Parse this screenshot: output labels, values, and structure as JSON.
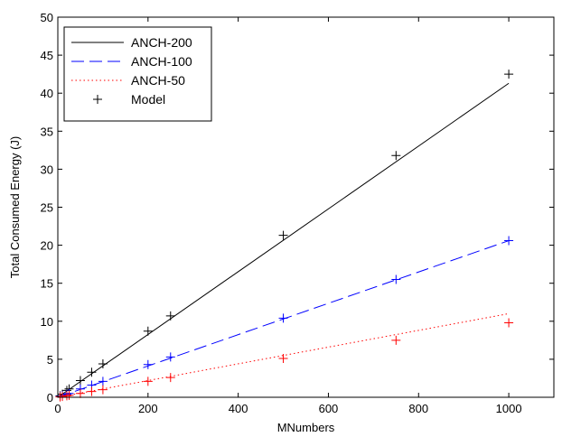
{
  "chart_data": {
    "type": "line",
    "title": "",
    "xlabel": "MNumbers",
    "ylabel": "Total Consumed Energy (J)",
    "xlim": [
      0,
      1100
    ],
    "ylim": [
      0,
      50
    ],
    "xticks": [
      0,
      200,
      400,
      600,
      800,
      1000
    ],
    "yticks": [
      0,
      5,
      10,
      15,
      20,
      25,
      30,
      35,
      40,
      45,
      50
    ],
    "grid": false,
    "legend_position": "top-left",
    "series": [
      {
        "name": "ANCH-200",
        "kind": "line",
        "style": "solid",
        "color": "#000000",
        "x": [
          0,
          1000
        ],
        "y": [
          0,
          41.3
        ]
      },
      {
        "name": "ANCH-100",
        "kind": "line",
        "style": "dashed",
        "color": "#0000ff",
        "x": [
          0,
          1000
        ],
        "y": [
          0,
          20.6
        ]
      },
      {
        "name": "ANCH-50",
        "kind": "line",
        "style": "dotted",
        "color": "#ff0000",
        "x": [
          0,
          1000
        ],
        "y": [
          0,
          11.0
        ]
      },
      {
        "name": "Model",
        "kind": "marker",
        "marker": "+",
        "color": "#000000",
        "x": [
          5,
          10,
          20,
          25,
          50,
          75,
          100,
          200,
          250,
          500,
          750,
          1000
        ],
        "y": [
          0.2,
          0.4,
          0.9,
          1.1,
          2.2,
          3.3,
          4.4,
          8.7,
          10.7,
          21.3,
          31.8,
          42.5
        ]
      },
      {
        "name": "",
        "kind": "marker",
        "marker": "+",
        "color": "#0000ff",
        "x": [
          5,
          10,
          20,
          25,
          50,
          75,
          100,
          200,
          250,
          500,
          750,
          1000
        ],
        "y": [
          0.1,
          0.2,
          0.4,
          0.5,
          1.1,
          1.6,
          2.1,
          4.3,
          5.3,
          10.4,
          15.5,
          20.6
        ]
      },
      {
        "name": "",
        "kind": "marker",
        "marker": "+",
        "color": "#ff0000",
        "x": [
          5,
          10,
          20,
          25,
          50,
          75,
          100,
          200,
          250,
          500,
          750,
          1000
        ],
        "y": [
          0.05,
          0.1,
          0.2,
          0.25,
          0.5,
          0.75,
          1.0,
          2.1,
          2.6,
          5.1,
          7.5,
          9.8
        ]
      }
    ]
  }
}
